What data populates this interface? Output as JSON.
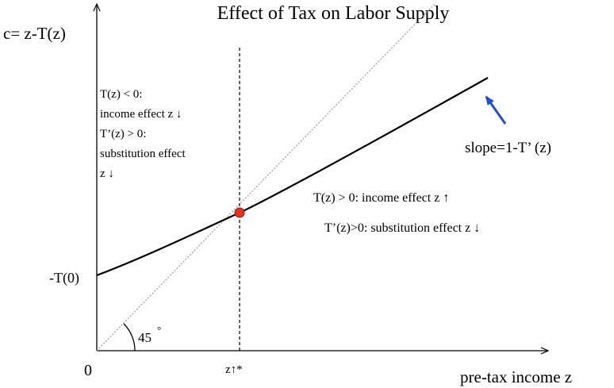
{
  "title": "Effect of Tax on Labor Supply",
  "y_axis_label": "c= z-T(z)",
  "x_axis_label": "pre-tax income z",
  "origin_label": "0",
  "intercept_label": "-T(0)",
  "zstar_label": "z↑*",
  "angle_label": "45",
  "degree_label": "°",
  "left_note": [
    "T(z) < 0:",
    "income effect z ↓",
    "T’(z) > 0:",
    "substitution effect",
    "z ↓"
  ],
  "right_note": [
    "T(z) > 0: income effect z ↑",
    "T’(z)>0: substitution effect z ↓"
  ],
  "slope_label": "slope=1-T’ (z)"
}
